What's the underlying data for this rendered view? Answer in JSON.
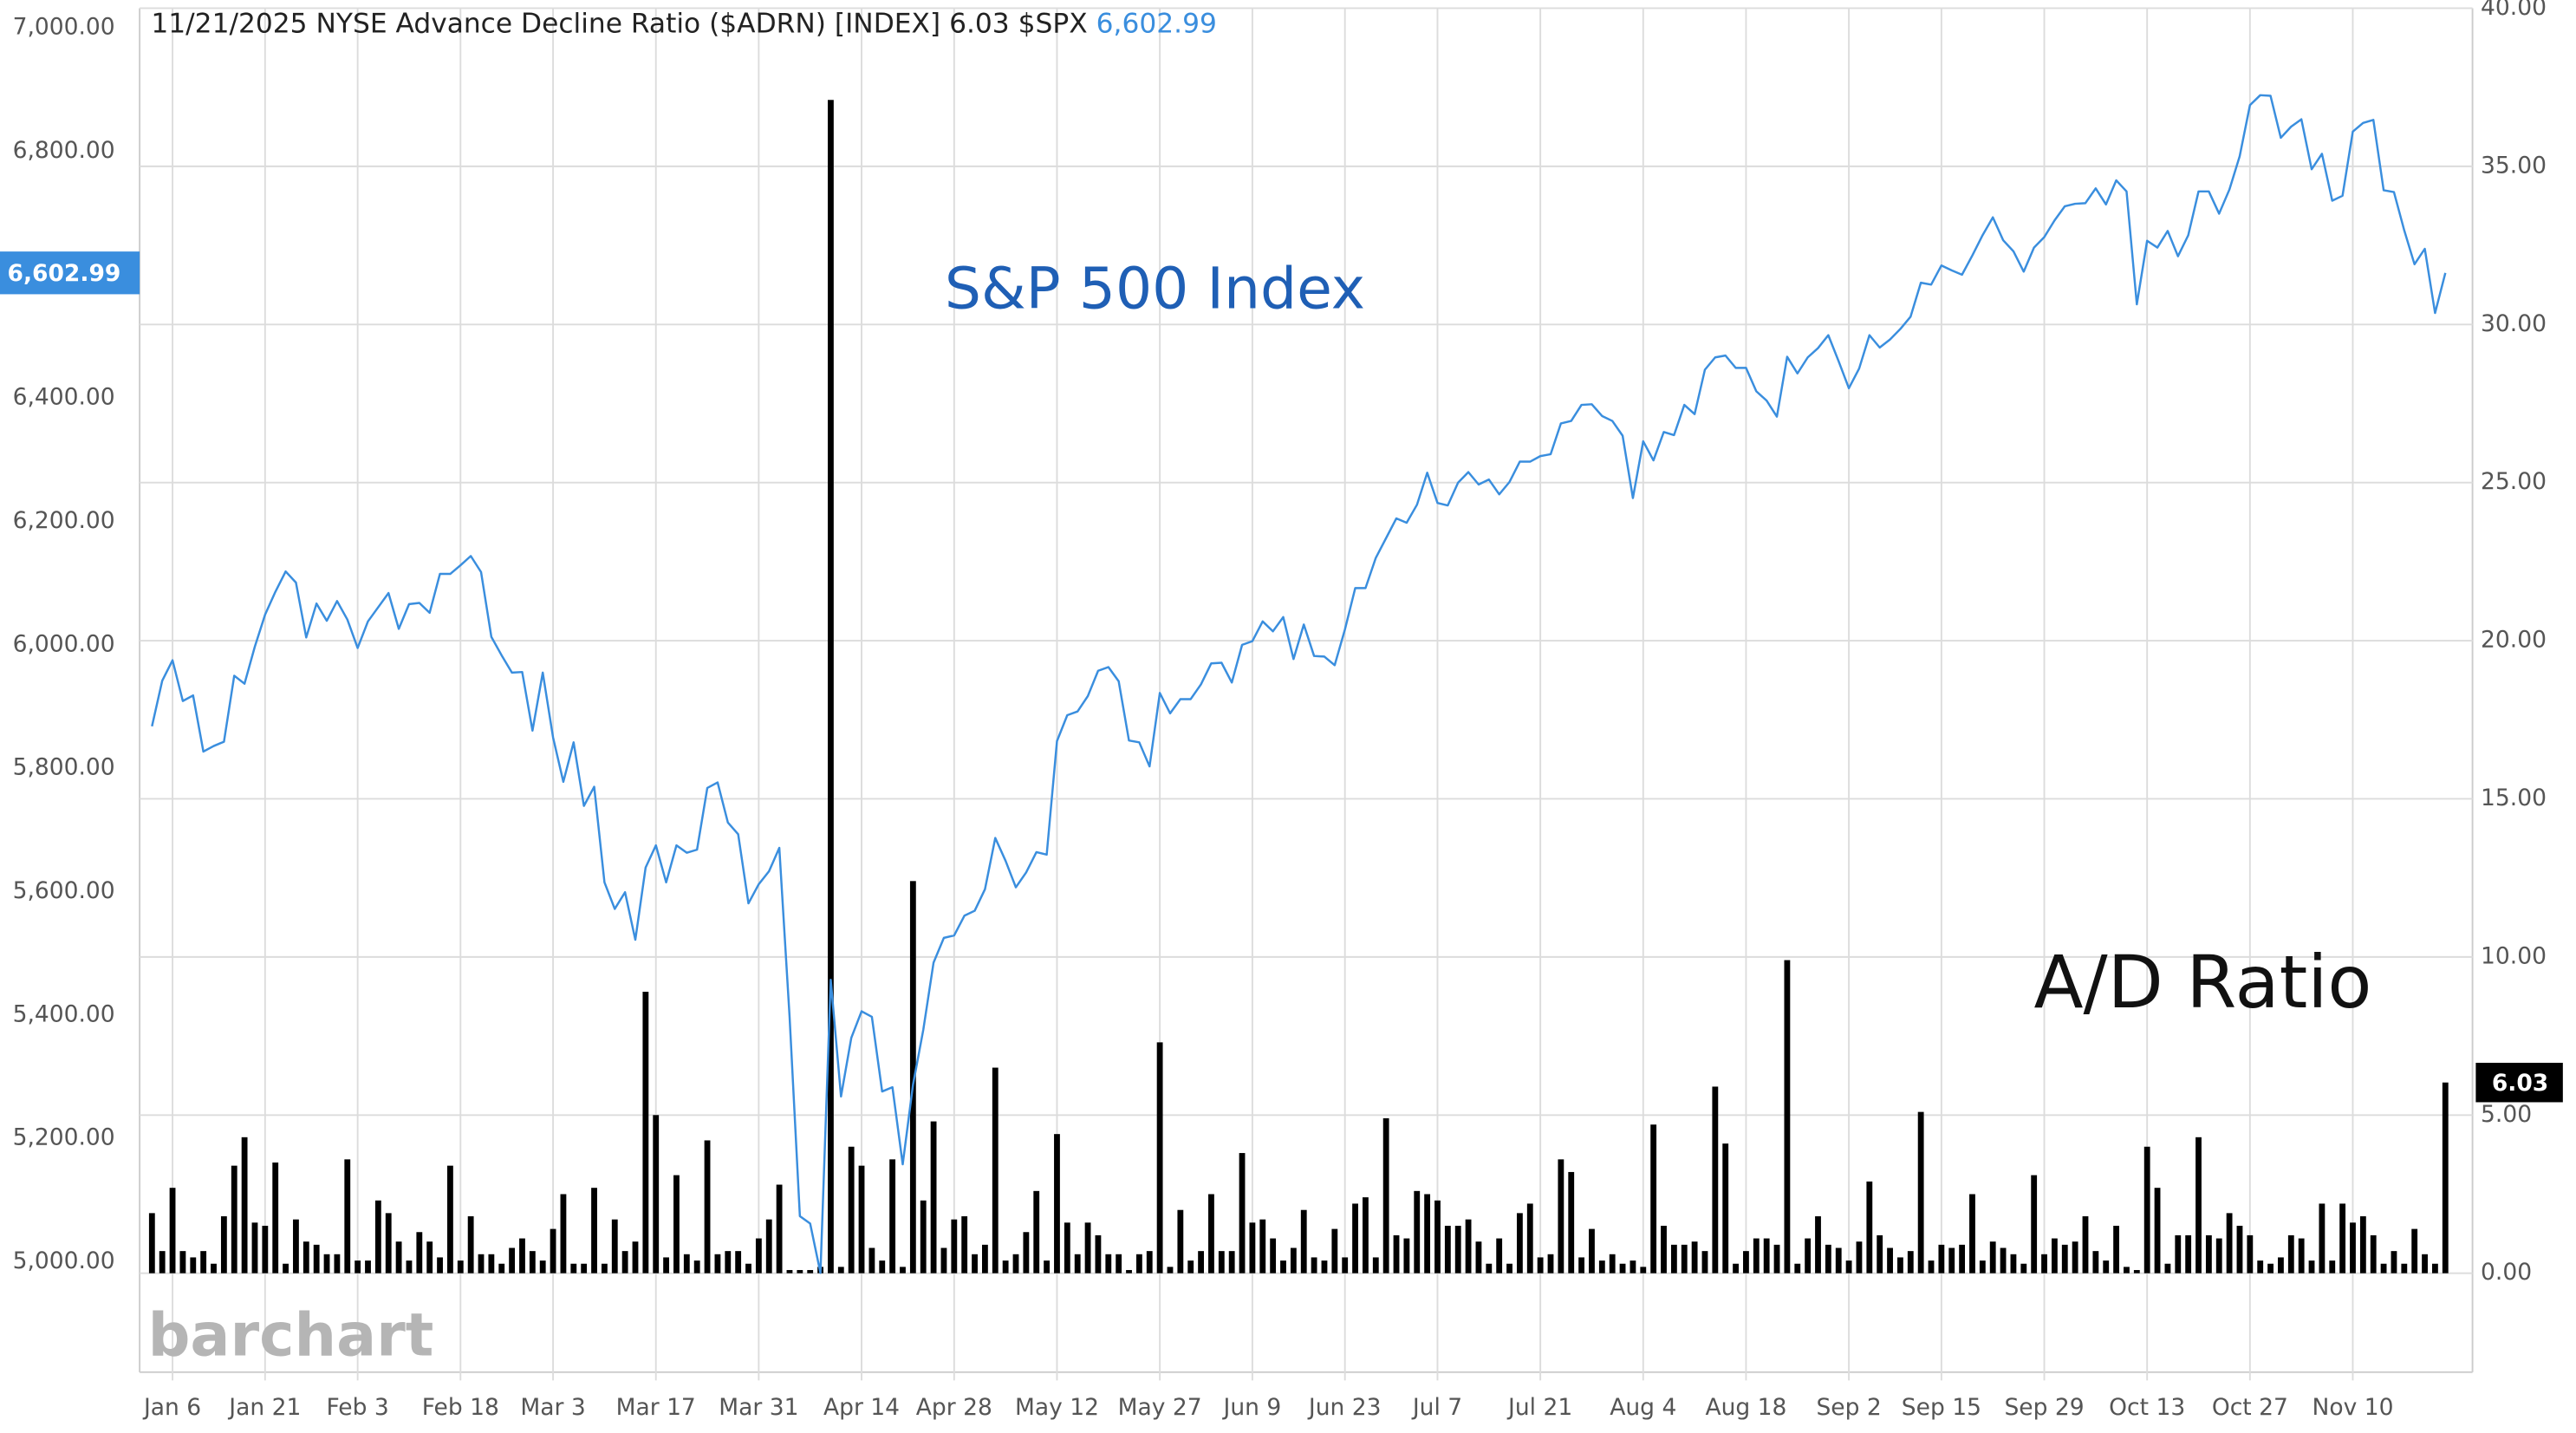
{
  "chart_data": {
    "type": "line-bar",
    "title": "11/21/2025 NYSE Advance Decline Ratio ($ADRN) [INDEX]",
    "symbol": "$SPX",
    "watermark": "barchart",
    "categories": [
      null,
      null,
      "Jan 6",
      null,
      null,
      null,
      null,
      null,
      null,
      null,
      null,
      "Jan 21",
      null,
      null,
      null,
      null,
      null,
      null,
      null,
      null,
      "Feb 3",
      null,
      null,
      null,
      null,
      null,
      null,
      null,
      null,
      null,
      "Feb 18",
      null,
      null,
      null,
      null,
      null,
      null,
      null,
      null,
      "Mar 3",
      null,
      null,
      null,
      null,
      null,
      null,
      null,
      null,
      null,
      "Mar 17",
      null,
      null,
      null,
      null,
      null,
      null,
      null,
      null,
      null,
      "Mar 31",
      null,
      null,
      null,
      null,
      null,
      null,
      null,
      null,
      null,
      "Apr 14",
      null,
      null,
      null,
      null,
      null,
      null,
      null,
      null,
      "Apr 28",
      null,
      null,
      null,
      null,
      null,
      null,
      null,
      null,
      null,
      "May 12",
      null,
      null,
      null,
      null,
      null,
      null,
      null,
      null,
      null,
      "May 27",
      null,
      null,
      null,
      null,
      null,
      null,
      null,
      null,
      "Jun 9",
      null,
      null,
      null,
      null,
      null,
      null,
      null,
      null,
      "Jun 23",
      null,
      null,
      null,
      null,
      null,
      null,
      null,
      null,
      "Jul 7",
      null,
      null,
      null,
      null,
      null,
      null,
      null,
      null,
      null,
      "Jul 21",
      null,
      null,
      null,
      null,
      null,
      null,
      null,
      null,
      null,
      "Aug 4",
      null,
      null,
      null,
      null,
      null,
      null,
      null,
      null,
      null,
      "Aug 18",
      null,
      null,
      null,
      null,
      null,
      null,
      null,
      null,
      null,
      "Sep 2",
      null,
      null,
      null,
      null,
      null,
      null,
      null,
      null,
      "Sep 15",
      null,
      null,
      null,
      null,
      null,
      null,
      null,
      null,
      null,
      "Sep 29",
      null,
      null,
      null,
      null,
      null,
      null,
      null,
      null,
      null,
      "Oct 13",
      null,
      null,
      null,
      null,
      null,
      null,
      null,
      null,
      null,
      "Oct 27",
      null,
      null,
      null,
      null,
      null,
      null,
      null,
      null,
      null,
      "Nov 10",
      null,
      null,
      null,
      null,
      null,
      null,
      null,
      null,
      null
    ],
    "series": [
      {
        "name": "S&P 500 Index",
        "type": "line",
        "color": "#3a8ede",
        "name_color": "#1f5fb5",
        "axis": "y",
        "values": [
          5868,
          5942,
          5975,
          5909,
          5918,
          5827,
          5836,
          5843,
          5950,
          5937,
          5997,
          6049,
          6086,
          6119,
          6101,
          6012,
          6067,
          6039,
          6071,
          6041,
          5995,
          6038,
          6061,
          6084,
          6026,
          6066,
          6068,
          6052,
          6115,
          6115,
          6129,
          6144,
          6118,
          6013,
          5983,
          5955,
          5956,
          5861,
          5955,
          5850,
          5778,
          5842,
          5739,
          5770,
          5615,
          5572,
          5599,
          5522,
          5639,
          5675,
          5615,
          5675,
          5663,
          5668,
          5768,
          5777,
          5712,
          5693,
          5581,
          5612,
          5633,
          5671,
          5397,
          5074,
          5062,
          4982,
          5457,
          5268,
          5363,
          5406,
          5397,
          5276,
          5283,
          5158,
          5287,
          5376,
          5485,
          5525,
          5529,
          5561,
          5569,
          5604,
          5687,
          5650,
          5607,
          5631,
          5664,
          5660,
          5844,
          5886,
          5892,
          5917,
          5958,
          5964,
          5941,
          5845,
          5842,
          5803,
          5922,
          5889,
          5912,
          5912,
          5936,
          5970,
          5971,
          5939,
          6000,
          6006,
          6038,
          6022,
          6045,
          5977,
          6033,
          5982,
          5981,
          5967,
          6025,
          6092,
          6092,
          6141,
          6173,
          6205,
          6198,
          6227,
          6279,
          6230,
          6226,
          6263,
          6280,
          6260,
          6268,
          6244,
          6264,
          6297,
          6297,
          6306,
          6309,
          6359,
          6363,
          6389,
          6390,
          6371,
          6363,
          6339,
          6238,
          6330,
          6299,
          6345,
          6340,
          6389,
          6374,
          6446,
          6466,
          6469,
          6449,
          6449,
          6411,
          6396,
          6370,
          6467,
          6440,
          6466,
          6481,
          6502,
          6460,
          6416,
          6448,
          6502,
          6482,
          6495,
          6512,
          6532,
          6587,
          6584,
          6615,
          6607,
          6600,
          6631,
          6664,
          6693,
          6656,
          6638,
          6605,
          6644,
          6661,
          6688,
          6711,
          6715,
          6716,
          6740,
          6714,
          6753,
          6735,
          6552,
          6655,
          6644,
          6671,
          6630,
          6664,
          6735,
          6735,
          6699,
          6738,
          6792,
          6875,
          6891,
          6890,
          6822,
          6840,
          6852,
          6771,
          6796,
          6720,
          6728,
          6832,
          6846,
          6851,
          6737,
          6734,
          6672,
          6617,
          6642,
          6538,
          6602.99
        ],
        "value_labels": {
          "223": "6,602.99"
        }
      },
      {
        "name": "A/D Ratio",
        "type": "bar",
        "color": "#000000",
        "name_color": "#111111",
        "axis": "y2",
        "values": [
          1.9,
          0.7,
          2.7,
          0.7,
          0.5,
          0.7,
          0.3,
          1.8,
          3.4,
          4.3,
          1.6,
          1.5,
          3.5,
          0.3,
          1.7,
          1.0,
          0.9,
          0.6,
          0.6,
          3.6,
          0.4,
          0.4,
          2.3,
          1.9,
          1.0,
          0.4,
          1.3,
          1.0,
          0.5,
          3.4,
          0.4,
          1.8,
          0.6,
          0.6,
          0.3,
          0.8,
          1.1,
          0.7,
          0.4,
          1.4,
          2.5,
          0.3,
          0.3,
          2.7,
          0.3,
          1.7,
          0.7,
          1.0,
          8.9,
          5.0,
          0.5,
          3.1,
          0.6,
          0.4,
          4.2,
          0.6,
          0.7,
          0.7,
          0.3,
          1.1,
          1.7,
          2.8,
          0.1,
          0.1,
          0.1,
          0.2,
          37.1,
          0.2,
          4.0,
          3.4,
          0.8,
          0.4,
          3.6,
          0.2,
          12.4,
          2.3,
          4.8,
          0.8,
          1.7,
          1.8,
          0.6,
          0.9,
          6.5,
          0.4,
          0.6,
          1.3,
          2.6,
          0.4,
          4.4,
          1.6,
          0.6,
          1.6,
          1.2,
          0.6,
          0.6,
          0.1,
          0.6,
          0.7,
          7.3,
          0.2,
          2.0,
          0.4,
          0.7,
          2.5,
          0.7,
          0.7,
          3.8,
          1.6,
          1.7,
          1.1,
          0.4,
          0.8,
          2.0,
          0.5,
          0.4,
          1.4,
          0.5,
          2.2,
          2.4,
          0.5,
          4.9,
          1.2,
          1.1,
          2.6,
          2.5,
          2.3,
          1.5,
          1.5,
          1.7,
          1.0,
          0.3,
          1.1,
          0.3,
          1.9,
          2.2,
          0.5,
          0.6,
          3.6,
          3.2,
          0.5,
          1.4,
          0.4,
          0.6,
          0.3,
          0.4,
          0.2,
          4.7,
          1.5,
          0.9,
          0.9,
          1.0,
          0.7,
          5.9,
          4.1,
          0.3,
          0.7,
          1.1,
          1.1,
          0.9,
          9.9,
          0.3,
          1.1,
          1.8,
          0.9,
          0.8,
          0.4,
          1.0,
          2.9,
          1.2,
          0.8,
          0.5,
          0.7,
          5.1,
          0.4,
          0.9,
          0.8,
          0.9,
          2.5,
          0.4,
          1.0,
          0.8,
          0.6,
          0.3,
          3.1,
          0.6,
          1.1,
          0.9,
          1.0,
          1.8,
          0.7,
          0.4,
          1.5,
          0.2,
          0.1,
          4.0,
          2.7,
          0.3,
          1.2,
          1.2,
          4.3,
          1.2,
          1.1,
          1.9,
          1.5,
          1.2,
          0.4,
          0.3,
          0.5,
          1.2,
          1.1,
          0.4,
          2.2,
          0.4,
          2.2,
          1.6,
          1.8,
          1.2,
          0.3,
          0.7,
          0.3,
          1.4,
          0.6,
          0.3,
          6.03
        ]
      }
    ],
    "ylim": [
      4821,
      7032
    ],
    "yticks": [
      {
        "value": 5000,
        "label": "5,000.00"
      },
      {
        "value": 5200,
        "label": "5,200.00"
      },
      {
        "value": 5400,
        "label": "5,400.00"
      },
      {
        "value": 5600,
        "label": "5,600.00"
      },
      {
        "value": 5800,
        "label": "5,800.00"
      },
      {
        "value": 6000,
        "label": "6,000.00"
      },
      {
        "value": 6200,
        "label": "6,200.00"
      },
      {
        "value": 6400,
        "label": "6,400.00"
      },
      {
        "value": 6600,
        "label": "6,600.00"
      },
      {
        "value": 6800,
        "label": "6,800.00"
      },
      {
        "value": 7000,
        "label": "7,000.00"
      }
    ],
    "y2lim": [
      -3.13,
      40
    ],
    "y2ticks": [
      {
        "value": 0,
        "label": "0.00"
      },
      {
        "value": 5,
        "label": "5.00"
      },
      {
        "value": 10,
        "label": "10.00"
      },
      {
        "value": 15,
        "label": "15.00"
      },
      {
        "value": 20,
        "label": "20.00"
      },
      {
        "value": 25,
        "label": "25.00"
      },
      {
        "value": 30,
        "label": "30.00"
      },
      {
        "value": 35,
        "label": "35.00"
      },
      {
        "value": 40,
        "label": "40.00"
      }
    ],
    "grid": true
  }
}
